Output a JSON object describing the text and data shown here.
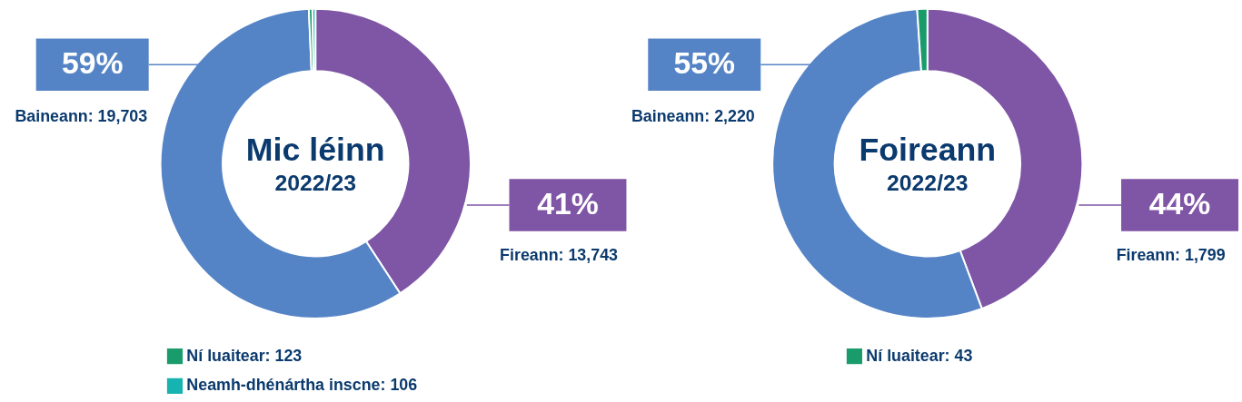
{
  "chart_data": [
    {
      "type": "donut",
      "title": "Mic léinn",
      "subtitle": "2022/23",
      "categories": [
        "Fireann",
        "Baineann",
        "Ní luaitear",
        "Neamh-dhénártha inscne"
      ],
      "values": [
        13743,
        19703,
        123,
        106
      ],
      "colors": [
        "#7f55a5",
        "#5584c6",
        "#1a9b6b",
        "#16b3b1"
      ],
      "value_labels": [
        "13,743",
        "19,703",
        "123",
        "106"
      ],
      "annotations": [
        "41%",
        "59%"
      ],
      "legend": "bottom"
    },
    {
      "type": "donut",
      "title": "Foireann",
      "subtitle": "2022/23",
      "categories": [
        "Fireann",
        "Baineann",
        "Ní luaitear"
      ],
      "values": [
        1799,
        2220,
        43
      ],
      "colors": [
        "#7f55a5",
        "#5584c6",
        "#1a9b6b"
      ],
      "value_labels": [
        "1,799",
        "2,220",
        "43"
      ],
      "annotations": [
        "44%",
        "55%"
      ],
      "legend": "bottom"
    }
  ]
}
